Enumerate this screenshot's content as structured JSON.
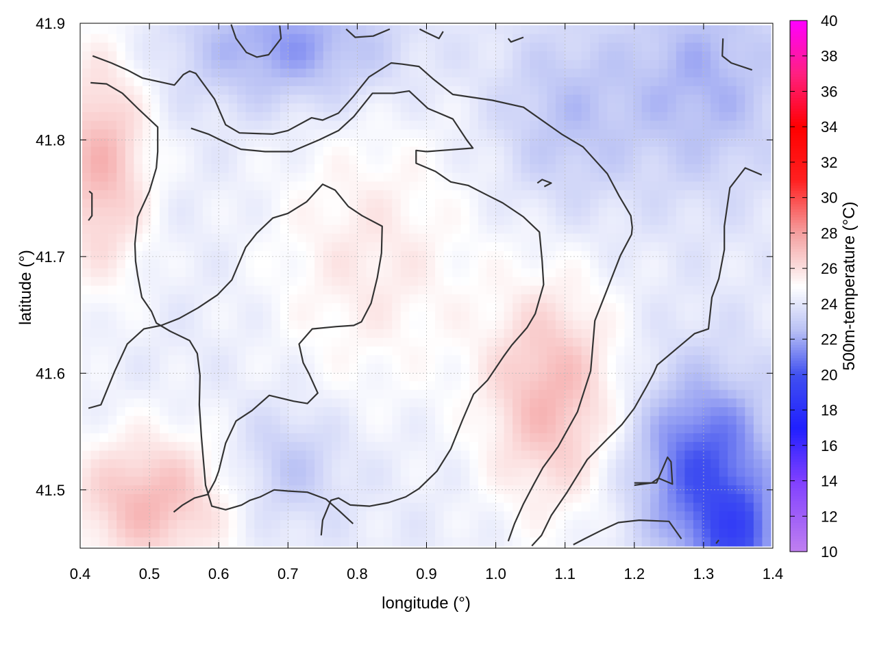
{
  "chart_data": {
    "type": "heatmap",
    "title": "",
    "xlabel": "longitude (°)",
    "ylabel": "latitude (°)",
    "colorbar_label": "500m-temperature (°C)",
    "xlim": [
      0.4,
      1.4
    ],
    "ylim": [
      41.45,
      41.9
    ],
    "x_ticks": [
      "0.4",
      "0.5",
      "0.6",
      "0.7",
      "0.8",
      "0.9",
      "1.0",
      "1.1",
      "1.2",
      "1.3",
      "1.4"
    ],
    "y_ticks": [
      "41.5",
      "41.6",
      "41.7",
      "41.8",
      "41.9"
    ],
    "colorbar_range": [
      10,
      40
    ],
    "colorbar_ticks": [
      "10",
      "12",
      "14",
      "16",
      "18",
      "20",
      "22",
      "24",
      "26",
      "28",
      "30",
      "32",
      "34",
      "36",
      "38",
      "40"
    ],
    "grid": true,
    "colormap": [
      {
        "value": 10,
        "color": "#c080f0"
      },
      {
        "value": 14,
        "color": "#8040ff"
      },
      {
        "value": 17,
        "color": "#2020ff"
      },
      {
        "value": 20,
        "color": "#4050f0"
      },
      {
        "value": 22.5,
        "color": "#b8c0f4"
      },
      {
        "value": 25,
        "color": "#ffffff"
      },
      {
        "value": 28,
        "color": "#f4a0a0"
      },
      {
        "value": 31,
        "color": "#ff2020"
      },
      {
        "value": 34,
        "color": "#ff0000"
      },
      {
        "value": 37,
        "color": "#ff2080"
      },
      {
        "value": 40,
        "color": "#ff00ff"
      }
    ],
    "field_blobs": [
      {
        "lon": 0.43,
        "lat": 41.78,
        "sx": 0.07,
        "sy": 0.1,
        "amp": 3.0
      },
      {
        "lon": 0.5,
        "lat": 41.49,
        "sx": 0.12,
        "sy": 0.06,
        "amp": 3.0
      },
      {
        "lon": 1.08,
        "lat": 41.58,
        "sx": 0.1,
        "sy": 0.1,
        "amp": 3.0
      },
      {
        "lon": 0.82,
        "lat": 41.7,
        "sx": 0.15,
        "sy": 0.12,
        "amp": 1.5
      },
      {
        "lon": 1.3,
        "lat": 41.52,
        "sx": 0.1,
        "sy": 0.08,
        "amp": -4.0
      },
      {
        "lon": 1.35,
        "lat": 41.46,
        "sx": 0.06,
        "sy": 0.04,
        "amp": -3.0
      },
      {
        "lon": 0.7,
        "lat": 41.88,
        "sx": 0.15,
        "sy": 0.05,
        "amp": -2.5
      },
      {
        "lon": 1.3,
        "lat": 41.85,
        "sx": 0.12,
        "sy": 0.09,
        "amp": -2.0
      },
      {
        "lon": 0.7,
        "lat": 41.52,
        "sx": 0.08,
        "sy": 0.05,
        "amp": -1.5
      },
      {
        "lon": 1.1,
        "lat": 41.82,
        "sx": 0.1,
        "sy": 0.08,
        "amp": -1.5
      }
    ],
    "contours": [
      [
        [
          0.418,
          41.872
        ],
        [
          0.445,
          41.866
        ],
        [
          0.468,
          41.86
        ],
        [
          0.49,
          41.853
        ],
        [
          0.536,
          41.847
        ],
        [
          0.549,
          41.856
        ],
        [
          0.558,
          41.859
        ],
        [
          0.567,
          41.857
        ],
        [
          0.594,
          41.835
        ],
        [
          0.61,
          41.813
        ],
        [
          0.63,
          41.806
        ],
        [
          0.678,
          41.805
        ],
        [
          0.7,
          41.808
        ],
        [
          0.734,
          41.819
        ],
        [
          0.75,
          41.817
        ],
        [
          0.773,
          41.823
        ],
        [
          0.794,
          41.837
        ],
        [
          0.817,
          41.854
        ],
        [
          0.849,
          41.866
        ],
        [
          0.865,
          41.865
        ],
        [
          0.889,
          41.863
        ],
        [
          0.91,
          41.852
        ],
        [
          0.938,
          41.839
        ],
        [
          0.995,
          41.834
        ],
        [
          1.04,
          41.828
        ],
        [
          1.095,
          41.805
        ],
        [
          1.126,
          41.794
        ],
        [
          1.161,
          41.771
        ],
        [
          1.178,
          41.752
        ],
        [
          1.195,
          41.735
        ],
        [
          1.197,
          41.725
        ],
        [
          1.196,
          41.719
        ],
        [
          1.18,
          41.701
        ],
        [
          1.157,
          41.666
        ],
        [
          1.143,
          41.645
        ],
        [
          1.137,
          41.602
        ],
        [
          1.118,
          41.567
        ],
        [
          1.09,
          41.537
        ],
        [
          1.068,
          41.519
        ],
        [
          1.055,
          41.505
        ],
        [
          1.04,
          41.488
        ],
        [
          1.027,
          41.471
        ],
        [
          1.018,
          41.456
        ]
      ],
      [
        [
          0.415,
          41.849
        ],
        [
          0.438,
          41.848
        ],
        [
          0.461,
          41.84
        ],
        [
          0.485,
          41.826
        ],
        [
          0.512,
          41.811
        ],
        [
          0.512,
          41.79
        ],
        [
          0.51,
          41.776
        ],
        [
          0.5,
          41.756
        ],
        [
          0.483,
          41.734
        ],
        [
          0.479,
          41.711
        ],
        [
          0.48,
          41.696
        ],
        [
          0.483,
          41.684
        ],
        [
          0.489,
          41.665
        ],
        [
          0.503,
          41.653
        ],
        [
          0.51,
          41.643
        ],
        [
          0.53,
          41.636
        ],
        [
          0.558,
          41.628
        ],
        [
          0.569,
          41.617
        ],
        [
          0.573,
          41.598
        ],
        [
          0.572,
          41.573
        ],
        [
          0.575,
          41.546
        ],
        [
          0.581,
          41.504
        ],
        [
          0.59,
          41.486
        ],
        [
          0.61,
          41.483
        ],
        [
          0.633,
          41.487
        ],
        [
          0.645,
          41.491
        ],
        [
          0.66,
          41.494
        ],
        [
          0.68,
          41.5
        ],
        [
          0.7,
          41.499
        ],
        [
          0.728,
          41.498
        ],
        [
          0.755,
          41.492
        ],
        [
          0.774,
          41.482
        ],
        [
          0.794,
          41.471
        ]
      ],
      [
        [
          0.413,
          41.756
        ],
        [
          0.417,
          41.754
        ],
        [
          0.417,
          41.735
        ],
        [
          0.412,
          41.731
        ]
      ],
      [
        [
          0.618,
          41.899
        ],
        [
          0.625,
          41.887
        ],
        [
          0.64,
          41.875
        ],
        [
          0.655,
          41.871
        ],
        [
          0.672,
          41.873
        ],
        [
          0.69,
          41.887
        ],
        [
          0.688,
          41.898
        ]
      ],
      [
        [
          0.784,
          41.895
        ],
        [
          0.797,
          41.888
        ],
        [
          0.823,
          41.889
        ],
        [
          0.847,
          41.895
        ]
      ],
      [
        [
          0.89,
          41.895
        ],
        [
          0.9,
          41.892
        ],
        [
          0.918,
          41.887
        ],
        [
          0.924,
          41.893
        ]
      ],
      [
        [
          1.018,
          41.887
        ],
        [
          1.022,
          41.884
        ],
        [
          1.04,
          41.888
        ]
      ],
      [
        [
          1.328,
          41.887
        ],
        [
          1.327,
          41.872
        ],
        [
          1.34,
          41.866
        ],
        [
          1.37,
          41.86
        ]
      ],
      [
        [
          0.412,
          41.57
        ],
        [
          0.43,
          41.573
        ],
        [
          0.45,
          41.602
        ],
        [
          0.468,
          41.625
        ],
        [
          0.492,
          41.638
        ],
        [
          0.517,
          41.641
        ],
        [
          0.543,
          41.647
        ],
        [
          0.57,
          41.656
        ],
        [
          0.598,
          41.667
        ],
        [
          0.619,
          41.68
        ],
        [
          0.639,
          41.708
        ],
        [
          0.655,
          41.72
        ],
        [
          0.678,
          41.733
        ],
        [
          0.7,
          41.737
        ],
        [
          0.727,
          41.747
        ],
        [
          0.75,
          41.762
        ],
        [
          0.768,
          41.757
        ],
        [
          0.787,
          41.743
        ],
        [
          0.807,
          41.735
        ],
        [
          0.836,
          41.726
        ],
        [
          0.835,
          41.703
        ],
        [
          0.829,
          41.682
        ],
        [
          0.82,
          41.66
        ],
        [
          0.806,
          41.644
        ],
        [
          0.795,
          41.641
        ],
        [
          0.77,
          41.64
        ],
        [
          0.735,
          41.638
        ],
        [
          0.716,
          41.625
        ],
        [
          0.722,
          41.609
        ],
        [
          0.73,
          41.6
        ],
        [
          0.743,
          41.583
        ],
        [
          0.728,
          41.574
        ],
        [
          0.708,
          41.576
        ],
        [
          0.673,
          41.581
        ],
        [
          0.648,
          41.568
        ],
        [
          0.625,
          41.559
        ],
        [
          0.61,
          41.54
        ],
        [
          0.6,
          41.516
        ],
        [
          0.595,
          41.508
        ],
        [
          0.584,
          41.496
        ],
        [
          0.565,
          41.493
        ],
        [
          0.548,
          41.487
        ],
        [
          0.535,
          41.481
        ]
      ],
      [
        [
          0.56,
          41.81
        ],
        [
          0.585,
          41.805
        ],
        [
          0.613,
          41.797
        ],
        [
          0.632,
          41.792
        ],
        [
          0.667,
          41.79
        ],
        [
          0.705,
          41.79
        ],
        [
          0.745,
          41.8
        ],
        [
          0.773,
          41.808
        ],
        [
          0.795,
          41.82
        ],
        [
          0.822,
          41.84
        ],
        [
          0.853,
          41.84
        ],
        [
          0.875,
          41.842
        ],
        [
          0.902,
          41.827
        ],
        [
          0.938,
          41.818
        ],
        [
          0.958,
          41.8
        ],
        [
          0.967,
          41.793
        ],
        [
          0.9,
          41.79
        ],
        [
          0.885,
          41.791
        ],
        [
          0.885,
          41.78
        ],
        [
          0.913,
          41.773
        ],
        [
          0.935,
          41.764
        ],
        [
          0.96,
          41.761
        ],
        [
          0.99,
          41.752
        ],
        [
          1.01,
          41.746
        ],
        [
          1.04,
          41.734
        ],
        [
          1.063,
          41.721
        ],
        [
          1.067,
          41.696
        ],
        [
          1.069,
          41.676
        ],
        [
          1.057,
          41.651
        ],
        [
          1.045,
          41.639
        ],
        [
          1.023,
          41.624
        ],
        [
          1.012,
          41.615
        ],
        [
          0.988,
          41.594
        ],
        [
          0.968,
          41.582
        ],
        [
          0.952,
          41.56
        ],
        [
          0.935,
          41.535
        ],
        [
          0.915,
          41.516
        ],
        [
          0.889,
          41.501
        ],
        [
          0.87,
          41.494
        ],
        [
          0.845,
          41.489
        ],
        [
          0.818,
          41.486
        ],
        [
          0.79,
          41.487
        ],
        [
          0.773,
          41.493
        ],
        [
          0.762,
          41.491
        ],
        [
          0.75,
          41.474
        ],
        [
          0.748,
          41.461
        ]
      ],
      [
        [
          1.06,
          41.763
        ],
        [
          1.067,
          41.766
        ],
        [
          1.08,
          41.763
        ],
        [
          1.07,
          41.76
        ]
      ],
      [
        [
          1.384,
          41.77
        ],
        [
          1.36,
          41.776
        ],
        [
          1.338,
          41.759
        ],
        [
          1.33,
          41.726
        ],
        [
          1.33,
          41.706
        ],
        [
          1.322,
          41.681
        ],
        [
          1.312,
          41.665
        ],
        [
          1.307,
          41.638
        ],
        [
          1.287,
          41.634
        ],
        [
          1.263,
          41.622
        ],
        [
          1.233,
          41.607
        ],
        [
          1.228,
          41.6
        ],
        [
          1.219,
          41.59
        ],
        [
          1.2,
          41.57
        ],
        [
          1.182,
          41.556
        ],
        [
          1.16,
          41.543
        ],
        [
          1.132,
          41.526
        ],
        [
          1.103,
          41.498
        ],
        [
          1.08,
          41.478
        ],
        [
          1.066,
          41.461
        ],
        [
          1.052,
          41.452
        ]
      ],
      [
        [
          1.112,
          41.453
        ],
        [
          1.128,
          41.458
        ],
        [
          1.155,
          41.466
        ],
        [
          1.177,
          41.472
        ],
        [
          1.207,
          41.474
        ],
        [
          1.25,
          41.473
        ],
        [
          1.268,
          41.458
        ]
      ],
      [
        [
          1.2,
          41.504
        ],
        [
          1.225,
          41.506
        ],
        [
          1.235,
          41.51
        ],
        [
          1.255,
          41.505
        ],
        [
          1.253,
          41.524
        ],
        [
          1.248,
          41.528
        ],
        [
          1.232,
          41.506
        ],
        [
          1.2,
          41.506
        ]
      ],
      [
        [
          1.318,
          41.454
        ],
        [
          1.322,
          41.457
        ]
      ]
    ]
  }
}
